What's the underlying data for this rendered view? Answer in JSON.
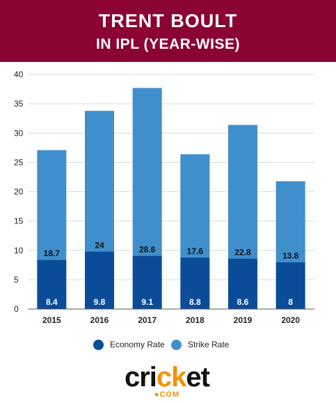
{
  "header": {
    "title": "TRENT BOULT",
    "subtitle": "IN IPL (YEAR-WISE)"
  },
  "colors": {
    "header_bg": "#8a0333",
    "economy": "#0a4c98",
    "strike": "#3f8fcc",
    "grid": "#d9d9d9"
  },
  "chart_data": {
    "type": "bar",
    "stacked": true,
    "categories": [
      "2015",
      "2016",
      "2017",
      "2018",
      "2019",
      "2020"
    ],
    "series": [
      {
        "name": "Economy Rate",
        "values": [
          8.4,
          9.8,
          9.1,
          8.8,
          8.6,
          8
        ]
      },
      {
        "name": "Strike Rate",
        "values": [
          18.7,
          24,
          28.6,
          17.6,
          22.8,
          13.8
        ]
      }
    ],
    "yticks": [
      0,
      5,
      10,
      15,
      20,
      25,
      30,
      35,
      40
    ],
    "ylim": [
      0,
      40
    ],
    "grid": true,
    "legend_position": "bottom-center"
  },
  "legend": [
    {
      "label": "Economy Rate"
    },
    {
      "label": "Strike Rate"
    }
  ],
  "logo": {
    "word_a": "cr",
    "word_b": "i",
    "word_c": "ck",
    "word_d": "et",
    "sub": "●COM"
  }
}
